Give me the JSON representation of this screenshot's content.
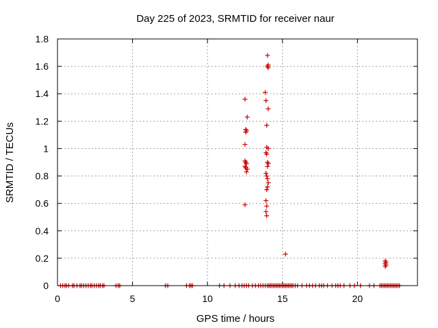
{
  "chart_data": {
    "type": "scatter",
    "title": "Day 225 of 2023, SRMTID for receiver naur",
    "xlabel": "GPS time / hours",
    "ylabel": "SRMTID / TECUs",
    "xlim": [
      0,
      24
    ],
    "ylim": [
      0,
      1.8
    ],
    "xticks": [
      0,
      5,
      10,
      15,
      20
    ],
    "xtick_labels": [
      "0",
      "5",
      "10",
      "15",
      "20"
    ],
    "yticks": [
      0,
      0.2,
      0.4,
      0.6,
      0.8,
      1,
      1.2,
      1.4,
      1.6,
      1.8
    ],
    "ytick_labels": [
      "0",
      "0.2",
      "0.4",
      "0.6",
      "0.8",
      "1",
      "1.2",
      "1.4",
      "1.6",
      "1.8"
    ],
    "grid": true,
    "marker": "+",
    "color": "#cc0000",
    "series": [
      {
        "points": [
          [
            0.2,
            0
          ],
          [
            0.35,
            0
          ],
          [
            0.5,
            0
          ],
          [
            0.6,
            0
          ],
          [
            0.75,
            0
          ],
          [
            1.0,
            0
          ],
          [
            1.1,
            0
          ],
          [
            1.3,
            0
          ],
          [
            1.5,
            0
          ],
          [
            1.6,
            0
          ],
          [
            1.75,
            0
          ],
          [
            1.9,
            0
          ],
          [
            2.05,
            0
          ],
          [
            2.2,
            0
          ],
          [
            2.3,
            0
          ],
          [
            2.45,
            0
          ],
          [
            2.6,
            0
          ],
          [
            2.75,
            0
          ],
          [
            2.85,
            0
          ],
          [
            3.0,
            0
          ],
          [
            3.1,
            0
          ],
          [
            3.9,
            0
          ],
          [
            4.05,
            0
          ],
          [
            4.15,
            0
          ],
          [
            7.2,
            0
          ],
          [
            7.35,
            0
          ],
          [
            8.6,
            0
          ],
          [
            8.8,
            0
          ],
          [
            8.9,
            0
          ],
          [
            9.0,
            0
          ],
          [
            10.8,
            0
          ],
          [
            11.1,
            0
          ],
          [
            11.5,
            0
          ],
          [
            11.85,
            0
          ],
          [
            12.1,
            0
          ],
          [
            12.3,
            0
          ],
          [
            12.45,
            0
          ],
          [
            12.6,
            0
          ],
          [
            12.75,
            0
          ],
          [
            13.0,
            0
          ],
          [
            13.2,
            0
          ],
          [
            13.4,
            0
          ],
          [
            13.55,
            0
          ],
          [
            13.7,
            0
          ],
          [
            13.85,
            0
          ],
          [
            14.0,
            0
          ],
          [
            14.1,
            0
          ],
          [
            14.2,
            0
          ],
          [
            14.3,
            0
          ],
          [
            14.4,
            0
          ],
          [
            14.5,
            0
          ],
          [
            14.6,
            0
          ],
          [
            14.7,
            0
          ],
          [
            14.8,
            0
          ],
          [
            14.9,
            0
          ],
          [
            15.0,
            0
          ],
          [
            15.1,
            0
          ],
          [
            15.2,
            0
          ],
          [
            15.3,
            0
          ],
          [
            15.4,
            0
          ],
          [
            15.5,
            0
          ],
          [
            15.6,
            0
          ],
          [
            15.7,
            0
          ],
          [
            15.85,
            0
          ],
          [
            16.0,
            0
          ],
          [
            16.3,
            0
          ],
          [
            16.6,
            0
          ],
          [
            16.8,
            0
          ],
          [
            17.0,
            0
          ],
          [
            17.2,
            0
          ],
          [
            17.45,
            0
          ],
          [
            17.6,
            0
          ],
          [
            17.75,
            0
          ],
          [
            18.0,
            0
          ],
          [
            18.3,
            0
          ],
          [
            18.55,
            0
          ],
          [
            18.7,
            0
          ],
          [
            18.85,
            0
          ],
          [
            19.1,
            0
          ],
          [
            19.5,
            0
          ],
          [
            19.8,
            0
          ],
          [
            20.2,
            0
          ],
          [
            20.8,
            0
          ],
          [
            21.1,
            0
          ],
          [
            21.5,
            0
          ],
          [
            21.6,
            0
          ],
          [
            21.7,
            0
          ],
          [
            21.8,
            0
          ],
          [
            21.9,
            0
          ],
          [
            22.0,
            0
          ],
          [
            22.1,
            0
          ],
          [
            22.2,
            0
          ],
          [
            22.3,
            0
          ],
          [
            22.4,
            0
          ],
          [
            22.5,
            0
          ],
          [
            22.6,
            0
          ],
          [
            22.7,
            0
          ],
          [
            22.8,
            0
          ],
          [
            12.5,
            1.36
          ],
          [
            12.55,
            1.14
          ],
          [
            12.6,
            1.13
          ],
          [
            12.55,
            1.12
          ],
          [
            12.65,
            1.23
          ],
          [
            12.5,
            1.03
          ],
          [
            12.5,
            0.91
          ],
          [
            12.55,
            0.9
          ],
          [
            12.6,
            0.89
          ],
          [
            12.5,
            0.87
          ],
          [
            12.55,
            0.86
          ],
          [
            12.65,
            0.85
          ],
          [
            12.6,
            0.83
          ],
          [
            12.5,
            0.59
          ],
          [
            13.85,
            1.41
          ],
          [
            13.9,
            1.35
          ],
          [
            13.95,
            1.17
          ],
          [
            14.0,
            1.68
          ],
          [
            14.05,
            1.61
          ],
          [
            14.0,
            1.6
          ],
          [
            14.05,
            1.59
          ],
          [
            14.05,
            1.29
          ],
          [
            13.95,
            1.01
          ],
          [
            14.05,
            1.0
          ],
          [
            13.9,
            0.97
          ],
          [
            13.95,
            0.96
          ],
          [
            14.0,
            0.9
          ],
          [
            14.05,
            0.89
          ],
          [
            14.0,
            0.87
          ],
          [
            13.9,
            0.82
          ],
          [
            13.95,
            0.8
          ],
          [
            14.0,
            0.78
          ],
          [
            14.05,
            0.75
          ],
          [
            14.0,
            0.72
          ],
          [
            13.95,
            0.7
          ],
          [
            13.9,
            0.62
          ],
          [
            13.95,
            0.58
          ],
          [
            13.9,
            0.54
          ],
          [
            13.95,
            0.51
          ],
          [
            15.2,
            0.23
          ],
          [
            21.85,
            0.18
          ],
          [
            21.9,
            0.17
          ],
          [
            21.85,
            0.16
          ],
          [
            21.9,
            0.15
          ],
          [
            21.85,
            0.14
          ]
        ]
      }
    ]
  }
}
